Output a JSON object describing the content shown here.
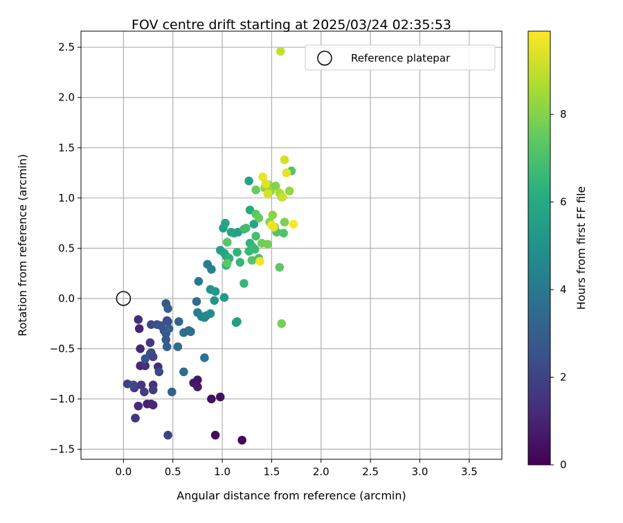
{
  "chart_data": {
    "type": "scatter",
    "title": "FOV centre drift starting at 2025/03/24 02:35:53",
    "xlabel": "Angular distance from reference (arcmin)",
    "ylabel": "Rotation from reference (arcmin)",
    "xlim": [
      -0.43,
      3.83
    ],
    "ylim": [
      -1.6,
      2.66
    ],
    "xticks": [
      "0.0",
      "0.5",
      "1.0",
      "1.5",
      "2.0",
      "2.5",
      "3.0",
      "3.5"
    ],
    "yticks": [
      "−1.5",
      "−1.0",
      "−0.5",
      "0.0",
      "0.5",
      "1.0",
      "1.5",
      "2.0",
      "2.5"
    ],
    "grid": true,
    "legend": {
      "placement": "top-right",
      "entries": [
        "Reference platepar"
      ]
    },
    "reference_point": {
      "x": 0.0,
      "y": 0.0,
      "label": "Reference platepar"
    },
    "colorbar": {
      "label": "Hours from first FF file",
      "range": [
        0,
        9.9
      ],
      "ticks": [
        "0",
        "2",
        "4",
        "6",
        "8"
      ],
      "colormap": "viridis"
    },
    "points": [
      {
        "x": 1.2,
        "y": -1.41,
        "h": 0.2
      },
      {
        "x": 0.93,
        "y": -1.36,
        "h": 0.3
      },
      {
        "x": 0.89,
        "y": -1.0,
        "h": 0.4
      },
      {
        "x": 0.98,
        "y": -0.98,
        "h": 0.4
      },
      {
        "x": 0.75,
        "y": -0.81,
        "h": 0.6
      },
      {
        "x": 0.71,
        "y": -0.84,
        "h": 0.6
      },
      {
        "x": 0.75,
        "y": -0.88,
        "h": 0.7
      },
      {
        "x": 0.24,
        "y": -1.05,
        "h": 0.9
      },
      {
        "x": 0.28,
        "y": -1.05,
        "h": 1.0
      },
      {
        "x": 0.3,
        "y": -1.06,
        "h": 1.1
      },
      {
        "x": 0.15,
        "y": -1.07,
        "h": 1.2
      },
      {
        "x": 0.12,
        "y": -1.19,
        "h": 1.5
      },
      {
        "x": 0.16,
        "y": -0.3,
        "h": 1.0
      },
      {
        "x": 0.15,
        "y": -0.21,
        "h": 1.3
      },
      {
        "x": 0.17,
        "y": -0.5,
        "h": 1.1
      },
      {
        "x": 0.17,
        "y": -0.67,
        "h": 1.2
      },
      {
        "x": 0.22,
        "y": -0.67,
        "h": 1.4
      },
      {
        "x": 0.35,
        "y": -0.68,
        "h": 1.2
      },
      {
        "x": 0.18,
        "y": -0.86,
        "h": 1.6
      },
      {
        "x": 0.11,
        "y": -0.89,
        "h": 1.7
      },
      {
        "x": 0.04,
        "y": -0.85,
        "h": 2.0
      },
      {
        "x": 0.1,
        "y": -0.86,
        "h": 2.2
      },
      {
        "x": 0.3,
        "y": -0.86,
        "h": 1.5
      },
      {
        "x": 0.21,
        "y": -0.93,
        "h": 1.8
      },
      {
        "x": 0.3,
        "y": -0.91,
        "h": 1.7
      },
      {
        "x": 0.27,
        "y": -0.44,
        "h": 1.6
      },
      {
        "x": 0.28,
        "y": -0.54,
        "h": 1.7
      },
      {
        "x": 0.27,
        "y": -0.55,
        "h": 2.5
      },
      {
        "x": 0.22,
        "y": -0.6,
        "h": 2.6
      },
      {
        "x": 0.3,
        "y": -0.58,
        "h": 2.0
      },
      {
        "x": 0.36,
        "y": -0.73,
        "h": 2.1
      },
      {
        "x": 0.49,
        "y": -0.93,
        "h": 3.0
      },
      {
        "x": 0.45,
        "y": -1.36,
        "h": 2.0
      },
      {
        "x": 0.28,
        "y": -0.26,
        "h": 2.2
      },
      {
        "x": 0.34,
        "y": -0.26,
        "h": 2.4
      },
      {
        "x": 0.38,
        "y": -0.27,
        "h": 2.6
      },
      {
        "x": 0.41,
        "y": -0.32,
        "h": 2.5
      },
      {
        "x": 0.43,
        "y": -0.35,
        "h": 2.7
      },
      {
        "x": 0.43,
        "y": -0.41,
        "h": 2.8
      },
      {
        "x": 0.44,
        "y": -0.22,
        "h": 2.3
      },
      {
        "x": 0.45,
        "y": -0.23,
        "h": 2.4
      },
      {
        "x": 0.43,
        "y": -0.05,
        "h": 2.8
      },
      {
        "x": 0.45,
        "y": -0.1,
        "h": 3.0
      },
      {
        "x": 0.46,
        "y": -0.3,
        "h": 3.0
      },
      {
        "x": 0.44,
        "y": -0.48,
        "h": 3.1
      },
      {
        "x": 0.56,
        "y": -0.23,
        "h": 3.2
      },
      {
        "x": 0.55,
        "y": -0.48,
        "h": 3.5
      },
      {
        "x": 0.61,
        "y": -0.73,
        "h": 3.5
      },
      {
        "x": 0.61,
        "y": -0.34,
        "h": 3.5
      },
      {
        "x": 0.66,
        "y": -0.32,
        "h": 3.4
      },
      {
        "x": 0.68,
        "y": -0.33,
        "h": 3.6
      },
      {
        "x": 0.74,
        "y": -0.03,
        "h": 3.6
      },
      {
        "x": 0.82,
        "y": -0.59,
        "h": 3.8
      },
      {
        "x": 0.76,
        "y": 0.17,
        "h": 4.0
      },
      {
        "x": 0.75,
        "y": -0.14,
        "h": 4.2
      },
      {
        "x": 0.79,
        "y": -0.18,
        "h": 4.4
      },
      {
        "x": 0.82,
        "y": -0.19,
        "h": 4.5
      },
      {
        "x": 0.84,
        "y": -0.17,
        "h": 4.6
      },
      {
        "x": 0.88,
        "y": -0.15,
        "h": 4.8
      },
      {
        "x": 0.85,
        "y": 0.34,
        "h": 4.2
      },
      {
        "x": 0.89,
        "y": 0.29,
        "h": 4.3
      },
      {
        "x": 0.88,
        "y": 0.09,
        "h": 5.0
      },
      {
        "x": 0.93,
        "y": 0.07,
        "h": 5.2
      },
      {
        "x": 0.92,
        "y": -0.02,
        "h": 5.1
      },
      {
        "x": 1.02,
        "y": 0.01,
        "h": 5.3
      },
      {
        "x": 1.14,
        "y": -0.24,
        "h": 5.4
      },
      {
        "x": 1.15,
        "y": -0.23,
        "h": 5.5
      },
      {
        "x": 0.98,
        "y": 0.48,
        "h": 5.6
      },
      {
        "x": 1.01,
        "y": 0.7,
        "h": 5.6
      },
      {
        "x": 1.03,
        "y": 0.75,
        "h": 5.8
      },
      {
        "x": 1.02,
        "y": 0.45,
        "h": 5.7
      },
      {
        "x": 1.04,
        "y": 0.42,
        "h": 5.9
      },
      {
        "x": 1.09,
        "y": 0.66,
        "h": 5.7
      },
      {
        "x": 1.12,
        "y": 0.65,
        "h": 5.8
      },
      {
        "x": 1.16,
        "y": 0.66,
        "h": 5.6
      },
      {
        "x": 1.27,
        "y": 1.17,
        "h": 5.7
      },
      {
        "x": 1.28,
        "y": 0.88,
        "h": 6.0
      },
      {
        "x": 1.32,
        "y": 0.74,
        "h": 5.9
      },
      {
        "x": 1.04,
        "y": 0.33,
        "h": 6.2
      },
      {
        "x": 1.07,
        "y": 0.4,
        "h": 6.3
      },
      {
        "x": 1.15,
        "y": 0.46,
        "h": 6.4
      },
      {
        "x": 1.18,
        "y": 0.36,
        "h": 6.5
      },
      {
        "x": 1.22,
        "y": 0.15,
        "h": 6.5
      },
      {
        "x": 1.22,
        "y": 0.69,
        "h": 6.6
      },
      {
        "x": 1.24,
        "y": 0.7,
        "h": 6.8
      },
      {
        "x": 1.28,
        "y": 0.55,
        "h": 6.4
      },
      {
        "x": 1.27,
        "y": 0.47,
        "h": 6.5
      },
      {
        "x": 1.31,
        "y": 0.51,
        "h": 6.6
      },
      {
        "x": 1.33,
        "y": 0.49,
        "h": 6.7
      },
      {
        "x": 1.34,
        "y": 0.62,
        "h": 6.9
      },
      {
        "x": 1.3,
        "y": 0.38,
        "h": 7.2
      },
      {
        "x": 1.37,
        "y": 0.4,
        "h": 7.0
      },
      {
        "x": 1.34,
        "y": 0.84,
        "h": 7.3
      },
      {
        "x": 1.37,
        "y": 0.8,
        "h": 7.5
      },
      {
        "x": 1.05,
        "y": 0.56,
        "h": 7.3
      },
      {
        "x": 1.05,
        "y": 0.35,
        "h": 7.4
      },
      {
        "x": 1.34,
        "y": 1.08,
        "h": 7.6
      },
      {
        "x": 1.4,
        "y": 0.55,
        "h": 7.7
      },
      {
        "x": 1.46,
        "y": 0.54,
        "h": 7.8
      },
      {
        "x": 1.48,
        "y": 0.76,
        "h": 8.0
      },
      {
        "x": 1.51,
        "y": 0.83,
        "h": 8.1
      },
      {
        "x": 1.53,
        "y": 0.71,
        "h": 7.9
      },
      {
        "x": 1.55,
        "y": 0.66,
        "h": 7.2
      },
      {
        "x": 1.58,
        "y": 0.31,
        "h": 7.4
      },
      {
        "x": 1.6,
        "y": -0.25,
        "h": 7.8
      },
      {
        "x": 1.62,
        "y": 0.65,
        "h": 7.1
      },
      {
        "x": 1.63,
        "y": 0.76,
        "h": 7.9
      },
      {
        "x": 1.7,
        "y": 1.27,
        "h": 7.2
      },
      {
        "x": 1.43,
        "y": 1.1,
        "h": 8.2
      },
      {
        "x": 1.47,
        "y": 1.13,
        "h": 8.3
      },
      {
        "x": 1.49,
        "y": 1.07,
        "h": 8.4
      },
      {
        "x": 1.54,
        "y": 1.12,
        "h": 8.0
      },
      {
        "x": 1.58,
        "y": 1.05,
        "h": 8.6
      },
      {
        "x": 1.6,
        "y": 1.01,
        "h": 8.5
      },
      {
        "x": 1.68,
        "y": 1.07,
        "h": 8.3
      },
      {
        "x": 1.59,
        "y": 2.46,
        "h": 9.0
      },
      {
        "x": 1.46,
        "y": 1.04,
        "h": 9.3
      },
      {
        "x": 1.41,
        "y": 1.21,
        "h": 9.6
      },
      {
        "x": 1.44,
        "y": 1.14,
        "h": 9.4
      },
      {
        "x": 1.63,
        "y": 1.38,
        "h": 9.2
      },
      {
        "x": 1.65,
        "y": 1.25,
        "h": 9.5
      },
      {
        "x": 1.61,
        "y": 1.01,
        "h": 9.1
      },
      {
        "x": 1.38,
        "y": 0.37,
        "h": 9.7
      },
      {
        "x": 1.5,
        "y": 0.73,
        "h": 9.8
      },
      {
        "x": 1.52,
        "y": 0.71,
        "h": 9.6
      },
      {
        "x": 1.72,
        "y": 0.74,
        "h": 9.9
      }
    ]
  }
}
